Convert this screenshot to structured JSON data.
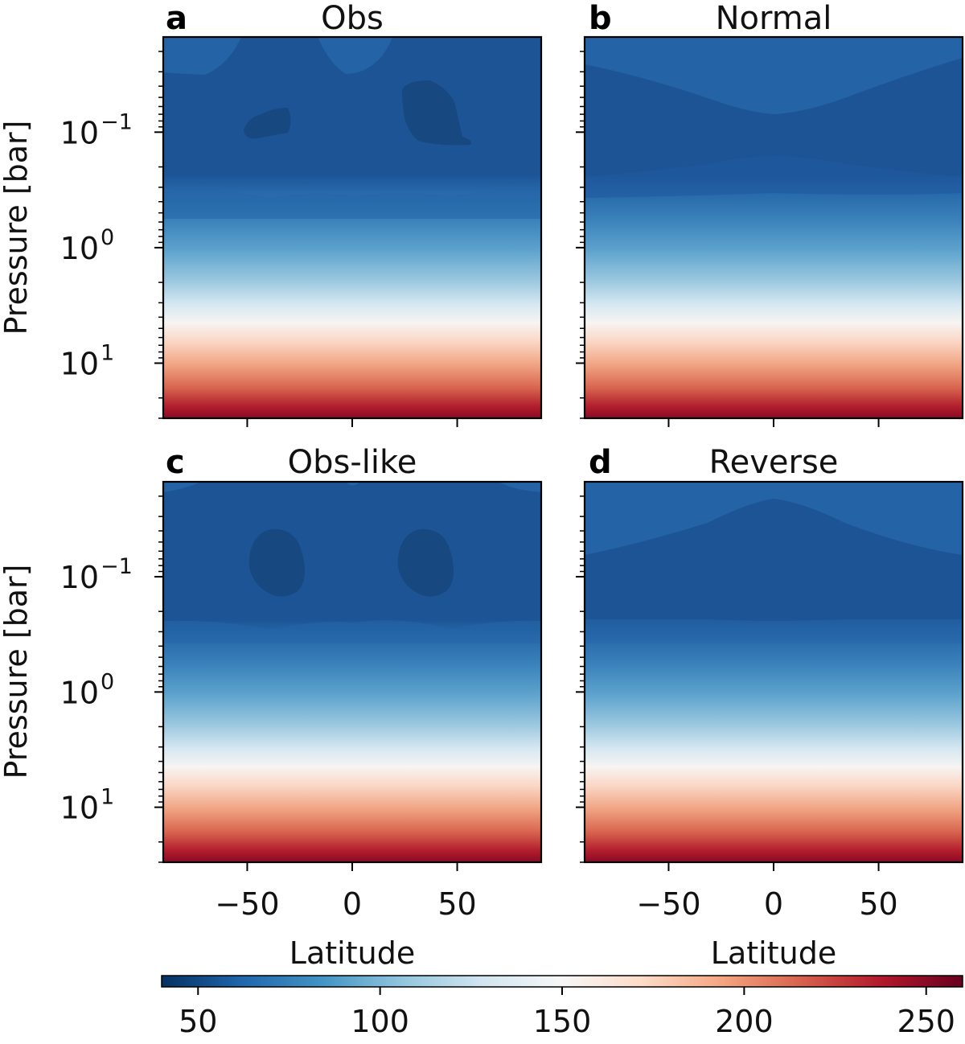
{
  "chart_data": {
    "type": "contour",
    "colorbar": {
      "range": [
        40,
        260
      ],
      "ticks": [
        50,
        100,
        150,
        200,
        250
      ],
      "tick_labels": [
        "50",
        "100",
        "150",
        "200",
        "250"
      ],
      "colormap": "RdBu_r",
      "colormap_stops": [
        "#053061",
        "#2166ac",
        "#4393c3",
        "#92c5de",
        "#d1e5f0",
        "#f7f7f7",
        "#fddbc7",
        "#f4a582",
        "#d6604d",
        "#b2182b",
        "#67001f"
      ],
      "label": ""
    },
    "x_axis": {
      "label": "Latitude",
      "range": [
        -90,
        90
      ],
      "ticks": [
        -50,
        0,
        50
      ],
      "tick_labels": [
        "−50",
        "0",
        "50"
      ]
    },
    "y_axis": {
      "label": "Pressure [bar]",
      "scale": "log",
      "inverted": true,
      "range": [
        0.015,
        30
      ],
      "major_ticks": [
        0.1,
        1,
        10
      ],
      "major_tick_labels": [
        "10",
        "10",
        "10"
      ],
      "major_tick_exponents": [
        "−1",
        "0",
        "1"
      ]
    },
    "panels": [
      {
        "letter": "a",
        "title": "Obs",
        "description_temperature_field": {
          "background_upper_K": 55,
          "upper_warm_patches_K": 65,
          "cold_blobs_K": 48,
          "cold_blob_centers": [
            {
              "lat": -35,
              "pressure_bar": 0.08
            },
            {
              "lat": 35,
              "pressure_bar": 0.07
            }
          ],
          "bottom_K": 255
        }
      },
      {
        "letter": "b",
        "title": "Normal",
        "description_temperature_field": {
          "profile": "cold layer narrowest at equator, widening toward poles",
          "bottom_K": 255
        }
      },
      {
        "letter": "c",
        "title": "Obs-like",
        "description_temperature_field": {
          "background_upper_K": 55,
          "cold_blobs_K": 48,
          "cold_blob_centers": [
            {
              "lat": -35,
              "pressure_bar": 0.08
            },
            {
              "lat": 35,
              "pressure_bar": 0.08
            }
          ],
          "bottom_K": 255
        }
      },
      {
        "letter": "d",
        "title": "Reverse",
        "description_temperature_field": {
          "profile": "warm dome over equator in upper levels, cold layer widest at equator",
          "bottom_K": 255
        }
      }
    ]
  }
}
